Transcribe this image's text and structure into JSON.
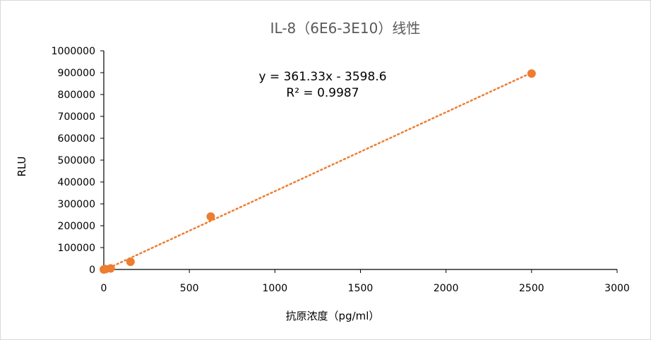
{
  "chart_data": {
    "type": "scatter",
    "title": "IL-8（6E6-3E10）线性",
    "xlabel": "抗原浓度（pg/ml）",
    "ylabel": "RLU",
    "xlim": [
      0,
      3000
    ],
    "ylim": [
      0,
      1000000
    ],
    "x_ticks": [
      0,
      500,
      1000,
      1500,
      2000,
      2500,
      3000
    ],
    "y_ticks": [
      0,
      100000,
      200000,
      300000,
      400000,
      500000,
      600000,
      700000,
      800000,
      900000,
      1000000
    ],
    "grid": false,
    "legend": "none",
    "series": [
      {
        "color": "#ed7d31",
        "points": [
          {
            "x": 0,
            "y": 0
          },
          {
            "x": 10,
            "y": 1500
          },
          {
            "x": 40,
            "y": 5000
          },
          {
            "x": 156,
            "y": 35000
          },
          {
            "x": 625,
            "y": 242000
          },
          {
            "x": 2500,
            "y": 896000
          }
        ]
      }
    ],
    "trendline": {
      "type": "linear",
      "slope": 361.33,
      "intercept": -3598.6,
      "x_range": [
        0,
        2500
      ],
      "style": "dotted",
      "color": "#ed7d31",
      "equation_label": "y = 361.33x - 3598.6",
      "r2_label": "R² = 0.9987"
    }
  }
}
